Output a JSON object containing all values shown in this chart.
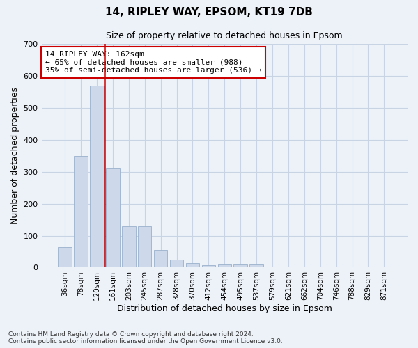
{
  "title": "14, RIPLEY WAY, EPSOM, KT19 7DB",
  "subtitle": "Size of property relative to detached houses in Epsom",
  "xlabel": "Distribution of detached houses by size in Epsom",
  "ylabel": "Number of detached properties",
  "bin_labels": [
    "36sqm",
    "78sqm",
    "120sqm",
    "161sqm",
    "203sqm",
    "245sqm",
    "287sqm",
    "328sqm",
    "370sqm",
    "412sqm",
    "454sqm",
    "495sqm",
    "537sqm",
    "579sqm",
    "621sqm",
    "662sqm",
    "704sqm",
    "746sqm",
    "788sqm",
    "829sqm",
    "871sqm"
  ],
  "bar_values": [
    65,
    350,
    570,
    310,
    130,
    130,
    55,
    25,
    15,
    8,
    10,
    10,
    10,
    0,
    0,
    0,
    0,
    0,
    0,
    0,
    0
  ],
  "bar_color": "#cdd9ea",
  "bar_edgecolor": "#9ab0cb",
  "grid_color": "#c8d4e4",
  "vline_color": "#cc0000",
  "annotation_line1": "14 RIPLEY WAY: 162sqm",
  "annotation_line2": "← 65% of detached houses are smaller (988)",
  "annotation_line3": "35% of semi-detached houses are larger (536) →",
  "annotation_box_color": "#ffffff",
  "annotation_box_edgecolor": "#cc0000",
  "ylim": [
    0,
    700
  ],
  "yticks": [
    0,
    100,
    200,
    300,
    400,
    500,
    600,
    700
  ],
  "footer1": "Contains HM Land Registry data © Crown copyright and database right 2024.",
  "footer2": "Contains public sector information licensed under the Open Government Licence v3.0.",
  "background_color": "#edf2f9",
  "title_fontsize": 11,
  "subtitle_fontsize": 9,
  "ylabel_fontsize": 9,
  "xlabel_fontsize": 9,
  "tick_fontsize": 7.5,
  "annotation_fontsize": 8,
  "footer_fontsize": 6.5
}
